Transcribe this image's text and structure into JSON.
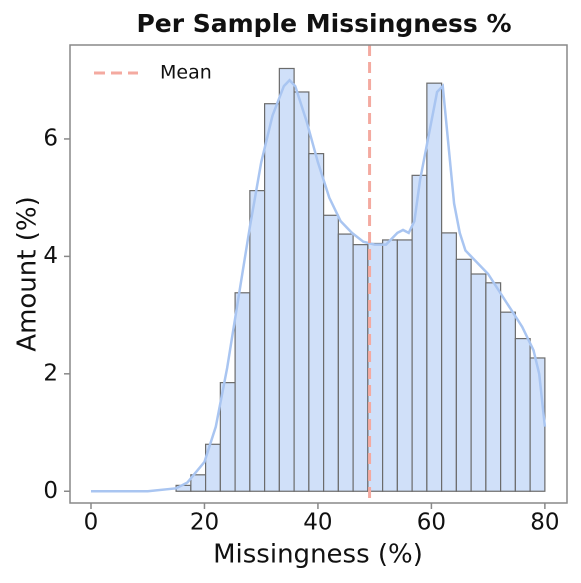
{
  "chart_data": {
    "type": "histogram",
    "title": "Per Sample Missingness %",
    "x_label": "Missingness (%)",
    "y_label": "Amount (%)",
    "bins": [
      15,
      17.6,
      20.2,
      22.8,
      25.4,
      28,
      30.6,
      33.2,
      35.8,
      38.4,
      41,
      43.6,
      46.2,
      48.8,
      51.4,
      54,
      56.6,
      59.2,
      61.8,
      64.4,
      67,
      69.6,
      72.2,
      74.8,
      77.4,
      80
    ],
    "values": [
      0.1,
      0.28,
      0.8,
      1.85,
      3.38,
      5.12,
      6.6,
      7.2,
      6.8,
      5.75,
      4.7,
      4.38,
      4.2,
      4.22,
      4.28,
      4.28,
      5.38,
      6.95,
      4.4,
      3.95,
      3.7,
      3.55,
      3.05,
      2.6,
      2.27
    ],
    "color": "#d0e0f9",
    "edge_color": "#6b6b6b",
    "kde": {
      "color": "#a9c5f1",
      "x": [
        0,
        10,
        15,
        17,
        20,
        22,
        24,
        26,
        28,
        30,
        32,
        34,
        35,
        36,
        38,
        40,
        42,
        44,
        46,
        48,
        50,
        52,
        54,
        55,
        56,
        57,
        58,
        59,
        60,
        61,
        62,
        63,
        64,
        65,
        66,
        68,
        70,
        72,
        74,
        76,
        78,
        79,
        80
      ],
      "values": [
        0,
        0,
        0.05,
        0.15,
        0.5,
        1.1,
        2.1,
        3.3,
        4.5,
        5.6,
        6.4,
        6.9,
        7.0,
        6.9,
        6.3,
        5.6,
        5.0,
        4.6,
        4.4,
        4.25,
        4.2,
        4.2,
        4.4,
        4.45,
        4.4,
        4.6,
        5.3,
        5.8,
        6.3,
        6.8,
        6.9,
        5.9,
        4.9,
        4.4,
        4.1,
        3.9,
        3.7,
        3.4,
        3.1,
        2.8,
        2.4,
        2.0,
        1.1
      ]
    },
    "mean_line": {
      "name": "Mean",
      "value": 49.1,
      "color": "#f4aaa0"
    },
    "legend": "upper left",
    "xlim": [
      -3.7,
      83.9
    ],
    "ylim": [
      -0.2,
      7.6
    ],
    "xticks": [
      0,
      20,
      40,
      60,
      80
    ],
    "yticks": [
      0,
      2,
      4,
      6
    ]
  }
}
